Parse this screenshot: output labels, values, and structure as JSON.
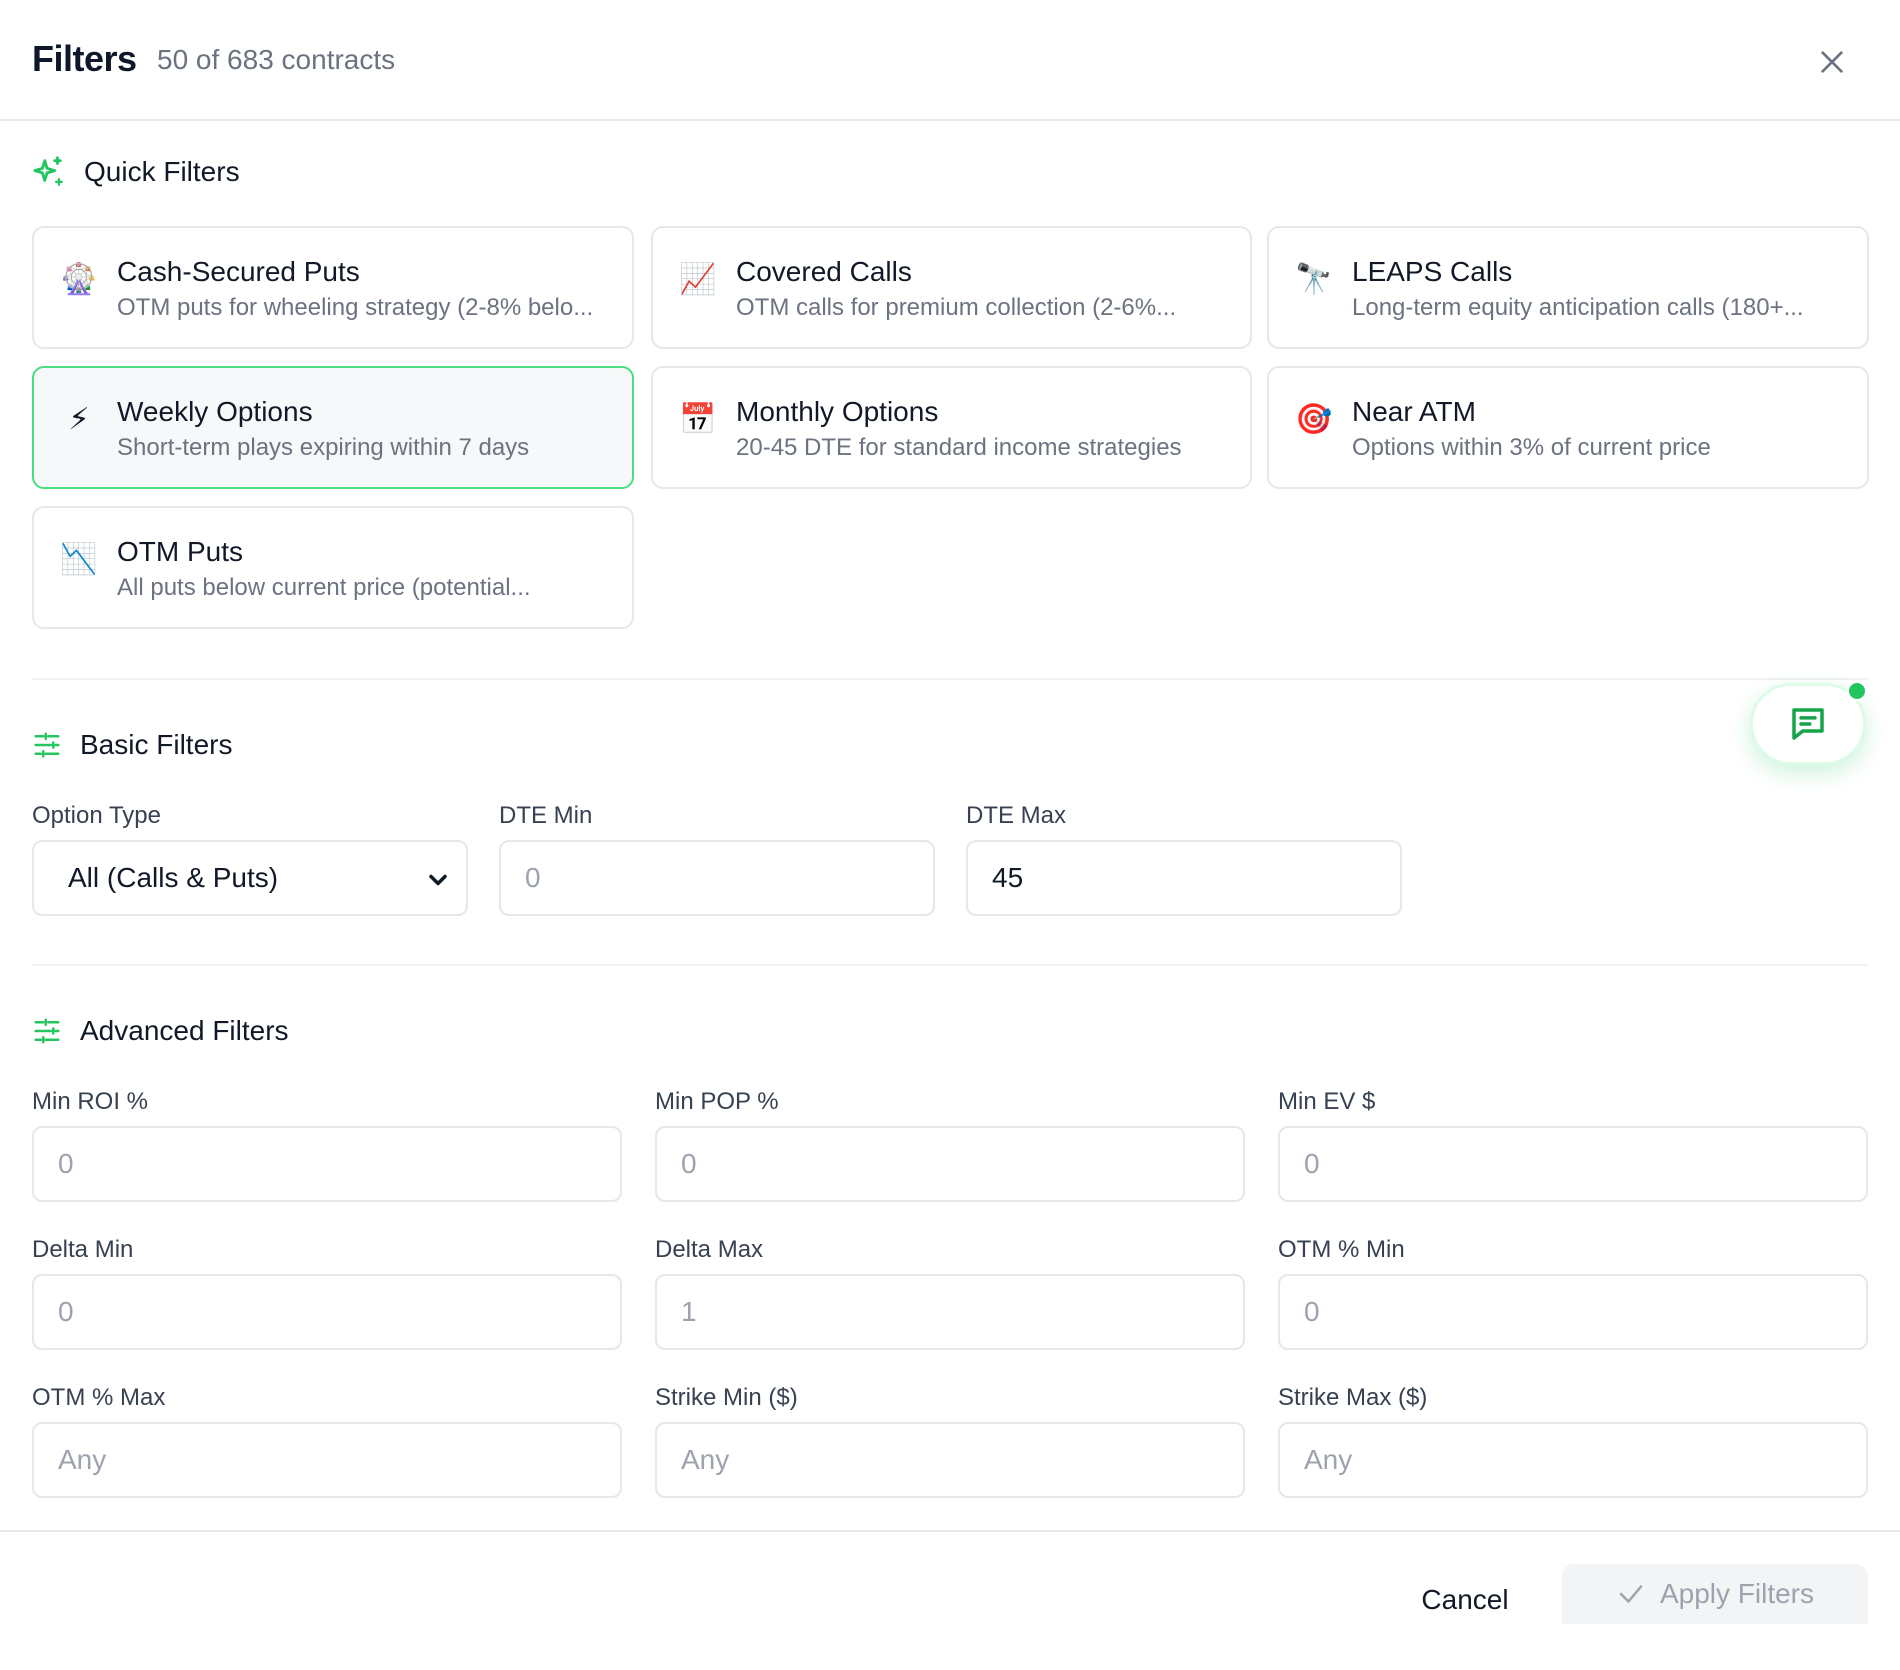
{
  "header": {
    "title": "Filters",
    "count_label": "50 of 683 contracts"
  },
  "quick_filters": {
    "heading": "Quick Filters",
    "items": [
      {
        "icon": "ferris-wheel-icon",
        "glyph": "🎡",
        "title": "Cash-Secured Puts",
        "desc": "OTM puts for wheeling strategy (2-8% belo...",
        "active": false
      },
      {
        "icon": "chart-up-icon",
        "glyph": "📈",
        "title": "Covered Calls",
        "desc": "OTM calls for premium collection (2-6%...",
        "active": false
      },
      {
        "icon": "telescope-icon",
        "glyph": "🔭",
        "title": "LEAPS Calls",
        "desc": "Long-term equity anticipation calls (180+...",
        "active": false
      },
      {
        "icon": "lightning-icon",
        "glyph": "⚡",
        "title": "Weekly Options",
        "desc": "Short-term plays expiring within 7 days",
        "active": true
      },
      {
        "icon": "calendar-icon",
        "glyph": "📅",
        "title": "Monthly Options",
        "desc": "20-45 DTE for standard income strategies",
        "active": false
      },
      {
        "icon": "target-icon",
        "glyph": "🎯",
        "title": "Near ATM",
        "desc": "Options within 3% of current price",
        "active": false
      },
      {
        "icon": "chart-down-icon",
        "glyph": "📉",
        "title": "OTM Puts",
        "desc": "All puts below current price (potential...",
        "active": false
      }
    ]
  },
  "basic_filters": {
    "heading": "Basic Filters",
    "option_type": {
      "label": "Option Type",
      "value": "All (Calls & Puts)"
    },
    "dte_min": {
      "label": "DTE Min",
      "value": "",
      "placeholder": "0"
    },
    "dte_max": {
      "label": "DTE Max",
      "value": "45",
      "placeholder": ""
    }
  },
  "advanced_filters": {
    "heading": "Advanced Filters",
    "fields": [
      {
        "label": "Min ROI %",
        "placeholder": "0"
      },
      {
        "label": "Min POP %",
        "placeholder": "0"
      },
      {
        "label": "Min EV $",
        "placeholder": "0"
      },
      {
        "label": "Delta Min",
        "placeholder": "0"
      },
      {
        "label": "Delta Max",
        "placeholder": "1"
      },
      {
        "label": "OTM % Min",
        "placeholder": "0"
      },
      {
        "label": "OTM % Max",
        "placeholder": "Any"
      },
      {
        "label": "Strike Min ($)",
        "placeholder": "Any"
      },
      {
        "label": "Strike Max ($)",
        "placeholder": "Any"
      }
    ]
  },
  "footer": {
    "cancel_label": "Cancel",
    "apply_label": "Apply Filters"
  },
  "colors": {
    "accent": "#22c55e",
    "active_border": "#4ade80",
    "muted_text": "#6b7280",
    "border": "#e5e7eb"
  }
}
